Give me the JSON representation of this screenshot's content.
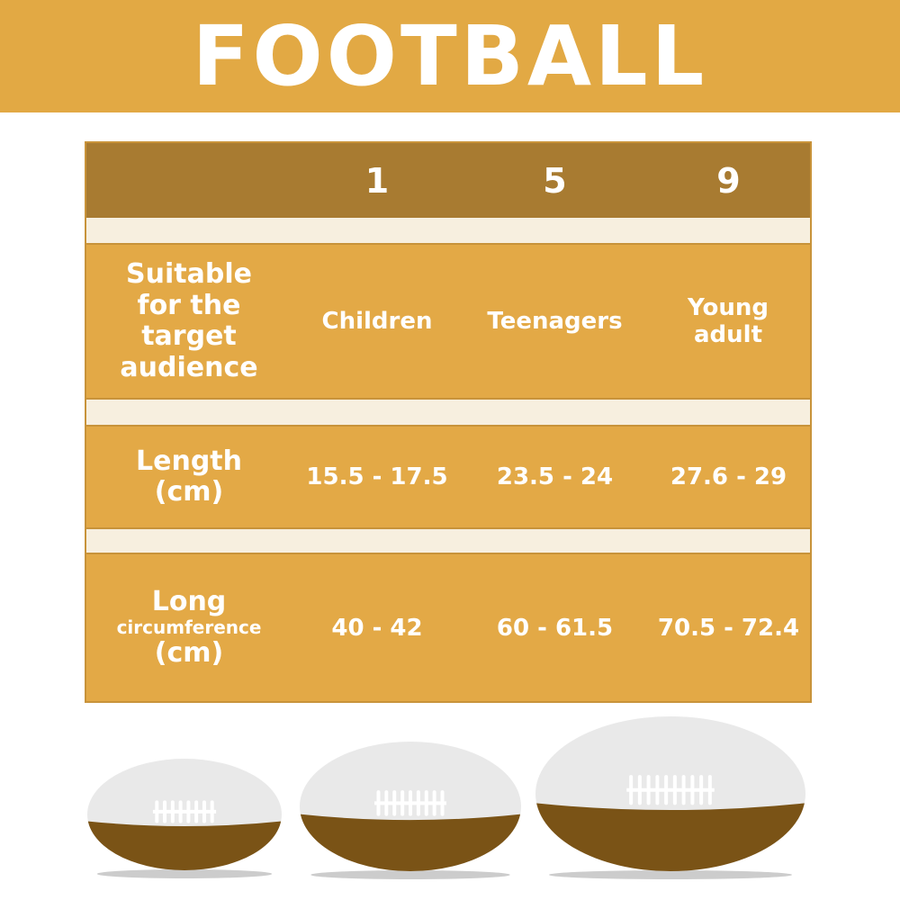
{
  "title": "FOOTBALL",
  "table": {
    "sizes": [
      "1",
      "5",
      "9"
    ],
    "rows": [
      {
        "label": [
          "Suitable",
          "for the",
          "target",
          "audience"
        ],
        "values": [
          "Children",
          "Teenagers",
          "Young adult"
        ]
      },
      {
        "label": [
          "Length",
          "(cm)"
        ],
        "values": [
          "15.5 - 17.5",
          "23.5 - 24",
          "27.6 - 29"
        ]
      },
      {
        "label": [
          "Long",
          "circumference",
          "(cm)"
        ],
        "values": [
          "40 - 42",
          "60 - 61.5",
          "70.5 - 72.4"
        ]
      }
    ]
  },
  "colors": {
    "banner": "#E2A944",
    "header": "#A87B31",
    "band": "#E3A946",
    "spacer": "#F7EFDF",
    "ball_brown": "#7A5316"
  }
}
